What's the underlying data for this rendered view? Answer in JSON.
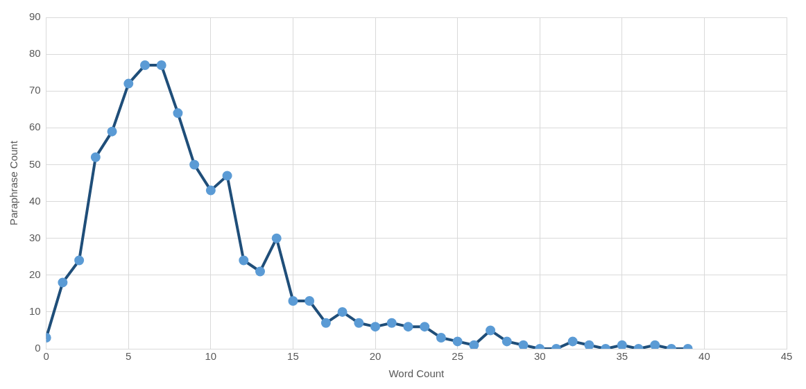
{
  "chart_data": {
    "type": "line",
    "xlabel": "Word Count",
    "ylabel": "Paraphrase Count",
    "x": [
      0,
      1,
      2,
      3,
      4,
      5,
      6,
      7,
      8,
      9,
      10,
      11,
      12,
      13,
      14,
      15,
      16,
      17,
      18,
      19,
      20,
      21,
      22,
      23,
      24,
      25,
      26,
      27,
      28,
      29,
      30,
      31,
      32,
      33,
      34,
      35,
      36,
      37,
      38,
      39
    ],
    "series": [
      {
        "color": "#1f4e79",
        "colors": [
          "#5b9bd5",
          "#5b9bd5",
          "#5b9bd5",
          "#5b9bd5",
          "#5b9bd5",
          "#5b9bd5",
          "#5b9bd5",
          "#5b9bd5",
          "#5b9bd5",
          "#5b9bd5",
          "#5b9bd5",
          "#5b9bd5",
          "#5b9bd5",
          "#5b9bd5",
          "#5b9bd5",
          "#5b9bd5",
          "#5b9bd5",
          "#5b9bd5",
          "#5b9bd5",
          "#5b9bd5",
          "#5b9bd5",
          "#5b9bd5",
          "#5b9bd5",
          "#5b9bd5",
          "#5b9bd5",
          "#5b9bd5",
          "#5b9bd5",
          "#5b9bd5",
          "#5b9bd5",
          "#5b9bd5",
          "#5b9bd5",
          "#5b9bd5",
          "#5b9bd5",
          "#5b9bd5",
          "#5b9bd5",
          "#5b9bd5",
          "#5b9bd5",
          "#5b9bd5",
          "#5b9bd5",
          "#5b9bd5"
        ],
        "values": [
          3,
          18,
          24,
          52,
          59,
          72,
          77,
          77,
          64,
          50,
          43,
          47,
          24,
          21,
          30,
          13,
          13,
          7,
          10,
          7,
          6,
          7,
          6,
          6,
          3,
          2,
          1,
          5,
          2,
          1,
          0,
          0,
          2,
          1,
          0,
          1,
          0,
          1,
          0,
          0
        ]
      }
    ],
    "xlim": [
      0,
      45
    ],
    "xticks": [
      0,
      5,
      10,
      15,
      20,
      25,
      30,
      35,
      40,
      45
    ],
    "ylim": [
      0,
      90
    ],
    "yticks": [
      0,
      10,
      20,
      30,
      40,
      50,
      60,
      70,
      80,
      90
    ],
    "grid": true,
    "legend": false,
    "marker": "circle",
    "line_style": "solid"
  }
}
